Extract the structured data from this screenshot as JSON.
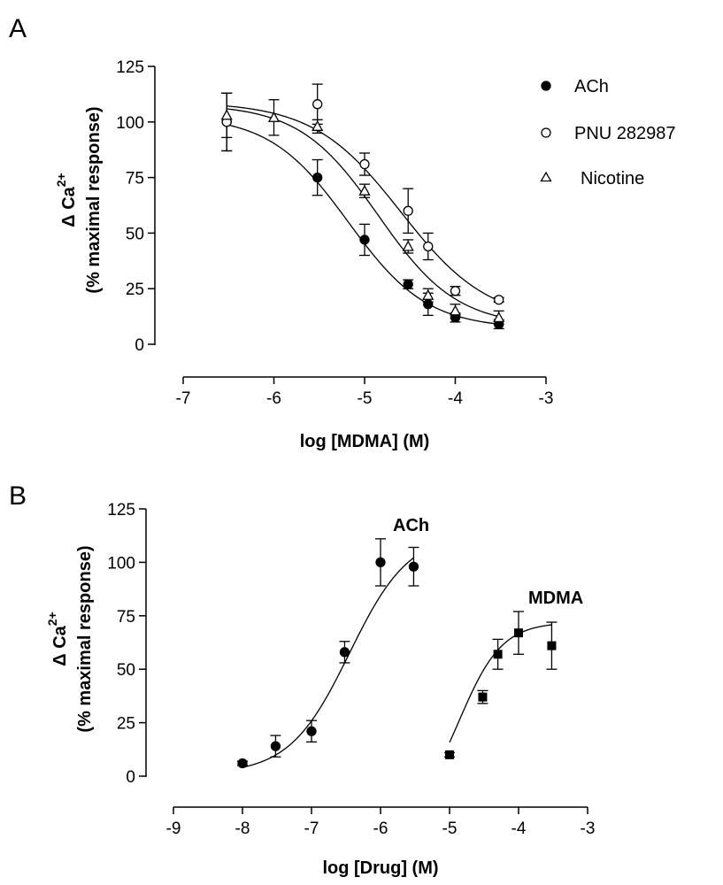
{
  "chart_data": [
    {
      "panel": "A",
      "type": "scatter",
      "xlabel": "log [MDMA] (M)",
      "ylabel_symbol": "Δ Ca",
      "ylabel_superscript": "2+",
      "ylabel_line2": "(% maximal response)",
      "xlim": [
        -7,
        -3
      ],
      "ylim": [
        0,
        125
      ],
      "xticks": [
        -7,
        -6,
        -5,
        -4,
        -3
      ],
      "xtick_labels": [
        "-7",
        "-6",
        "-5",
        "-4",
        "-3"
      ],
      "yticks": [
        0,
        25,
        50,
        75,
        100,
        125
      ],
      "ytick_labels": [
        "0",
        "25",
        "50",
        "75",
        "100",
        "125"
      ],
      "legend_position": "top-right",
      "series": [
        {
          "name": "ACh",
          "marker": "filled-circle",
          "x": [
            -6.52,
            -5.52,
            -5.0,
            -4.52,
            -4.3,
            -4.0,
            -3.52
          ],
          "y": [
            100,
            75,
            47,
            27,
            18,
            12,
            9
          ],
          "err": [
            13,
            8,
            7,
            2,
            5,
            2,
            2
          ],
          "fit": {
            "top": 103,
            "bottom": 7,
            "logIC50": -5.18,
            "hill": -1.0
          }
        },
        {
          "name": "PNU 282987",
          "marker": "open-circle",
          "x": [
            -6.52,
            -5.52,
            -5.0,
            -4.52,
            -4.3,
            -4.0,
            -3.52
          ],
          "y": [
            100,
            108,
            81,
            60,
            44,
            24,
            20
          ],
          "err": [
            13,
            9,
            5,
            10,
            6,
            2,
            1
          ],
          "fit": {
            "top": 109,
            "bottom": 10,
            "logIC50": -4.6,
            "hill": -0.9
          }
        },
        {
          "name": "Nicotine",
          "marker": "open-triangle",
          "x": [
            -6.52,
            -6.0,
            -5.52,
            -5.0,
            -4.52,
            -4.3,
            -4.0,
            -3.52
          ],
          "y": [
            103,
            102,
            98,
            69,
            44,
            22,
            15,
            12
          ],
          "err": [
            10,
            8,
            3,
            3,
            3,
            3,
            3,
            3
          ],
          "fit": {
            "top": 108,
            "bottom": 8,
            "logIC50": -4.85,
            "hill": -1.0
          }
        }
      ]
    },
    {
      "panel": "B",
      "type": "scatter",
      "xlabel": "log [Drug] (M)",
      "ylabel_symbol": "Δ Ca",
      "ylabel_superscript": "2+",
      "ylabel_line2": "(% maximal response)",
      "xlim": [
        -9,
        -3
      ],
      "ylim": [
        0,
        125
      ],
      "xticks": [
        -9,
        -8,
        -7,
        -6,
        -5,
        -4,
        -3
      ],
      "xtick_labels": [
        "-9",
        "-8",
        "-7",
        "-6",
        "-5",
        "-4",
        "-3"
      ],
      "yticks": [
        0,
        25,
        50,
        75,
        100,
        125
      ],
      "ytick_labels": [
        "0",
        "25",
        "50",
        "75",
        "100",
        "125"
      ],
      "series": [
        {
          "name": "ACh",
          "marker": "filled-circle",
          "x": [
            -8.0,
            -7.52,
            -7.0,
            -6.52,
            -6.0,
            -5.52
          ],
          "y": [
            6,
            14,
            21,
            58,
            100,
            98
          ],
          "err": [
            1,
            5,
            5,
            5,
            11,
            9
          ],
          "fit": {
            "top": 114,
            "bottom": 1,
            "logEC50": -6.45,
            "hill": 1.0,
            "xmin": -8.0,
            "xmax": -5.52
          }
        },
        {
          "name": "MDMA",
          "marker": "filled-square",
          "x": [
            -5.0,
            -4.52,
            -4.3,
            -4.0,
            -3.52
          ],
          "y": [
            10,
            37,
            57,
            67,
            61
          ],
          "err": [
            1,
            3,
            7,
            10,
            11
          ],
          "fit": {
            "top": 72,
            "bottom": -20,
            "logEC50": -4.86,
            "hill": 1.4,
            "xmin": -5.0,
            "xmax": -3.52
          }
        }
      ]
    }
  ]
}
